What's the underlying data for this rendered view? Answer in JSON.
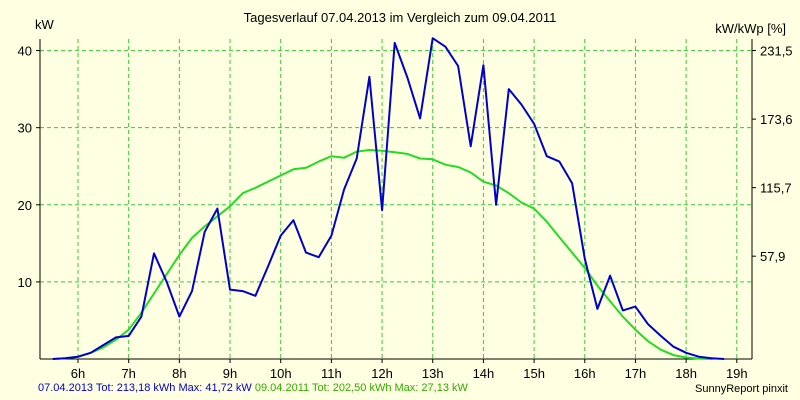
{
  "title": "Tagesverlauf 07.04.2013 im Vergleich zum 09.04.2011",
  "credit": "SunnyReport pinxit",
  "colors": {
    "background": "#ffffe1",
    "grid": "#33cc33",
    "series_2013": "#0000cc",
    "series_2011": "#22dd22"
  },
  "footer": {
    "series_2013": "07.04.2013 Tot: 213,18 kWh Max: 41,72 kW",
    "series_2011": "09.04.2011 Tot: 202,50 kWh Max: 27,13 kW"
  },
  "chart_data": {
    "type": "line",
    "title": "Tagesverlauf 07.04.2013 im Vergleich zum 09.04.2011",
    "ylabel": "kW",
    "ylabel_right": "kW/kWp [%]",
    "xlim": [
      5.25,
      19.3
    ],
    "ylim": [
      0,
      41.5
    ],
    "x_ticks": [
      6,
      7,
      8,
      9,
      10,
      11,
      12,
      13,
      14,
      15,
      16,
      17,
      18,
      19
    ],
    "x_tick_labels": [
      "6h",
      "7h",
      "8h",
      "9h",
      "10h",
      "11h",
      "12h",
      "13h",
      "14h",
      "15h",
      "16h",
      "17h",
      "18h",
      "19h"
    ],
    "y_ticks": [
      10,
      20,
      30,
      40
    ],
    "y_tick_labels": [
      "10",
      "20",
      "30",
      "40"
    ],
    "y2_ticks": [
      5,
      15,
      25,
      35,
      45
    ],
    "y2_tick_labels": [
      "",
      "57,9",
      "115,7",
      "173,6",
      "231,5"
    ],
    "grid": true,
    "series": [
      {
        "name": "07.04.2013",
        "color": "#0000cc",
        "points": [
          [
            5.5,
            0
          ],
          [
            5.75,
            0.1
          ],
          [
            6.0,
            0.3
          ],
          [
            6.25,
            0.8
          ],
          [
            6.5,
            1.8
          ],
          [
            6.75,
            2.8
          ],
          [
            7.0,
            3.0
          ],
          [
            7.25,
            5.5
          ],
          [
            7.5,
            13.7
          ],
          [
            7.75,
            10.0
          ],
          [
            8.0,
            5.5
          ],
          [
            8.25,
            8.8
          ],
          [
            8.5,
            16.5
          ],
          [
            8.75,
            19.5
          ],
          [
            9.0,
            9.0
          ],
          [
            9.25,
            8.8
          ],
          [
            9.5,
            8.2
          ],
          [
            9.75,
            12.0
          ],
          [
            10.0,
            16.0
          ],
          [
            10.25,
            18.0
          ],
          [
            10.5,
            13.8
          ],
          [
            10.75,
            13.2
          ],
          [
            11.0,
            16.0
          ],
          [
            11.25,
            22.0
          ],
          [
            11.5,
            26.0
          ],
          [
            11.75,
            36.6
          ],
          [
            12.0,
            19.3
          ],
          [
            12.25,
            41.0
          ],
          [
            12.5,
            36.5
          ],
          [
            12.75,
            31.2
          ],
          [
            13.0,
            41.6
          ],
          [
            13.25,
            40.5
          ],
          [
            13.5,
            38.0
          ],
          [
            13.75,
            27.6
          ],
          [
            14.0,
            38.1
          ],
          [
            14.25,
            20.0
          ],
          [
            14.5,
            35.0
          ],
          [
            14.75,
            33.0
          ],
          [
            15.0,
            30.5
          ],
          [
            15.25,
            26.3
          ],
          [
            15.5,
            25.6
          ],
          [
            15.75,
            22.8
          ],
          [
            16.0,
            13.0
          ],
          [
            16.25,
            6.5
          ],
          [
            16.5,
            10.8
          ],
          [
            16.75,
            6.3
          ],
          [
            17.0,
            6.8
          ],
          [
            17.25,
            4.5
          ],
          [
            17.5,
            3.0
          ],
          [
            17.75,
            1.6
          ],
          [
            18.0,
            0.8
          ],
          [
            18.25,
            0.3
          ],
          [
            18.5,
            0.1
          ],
          [
            18.75,
            0
          ]
        ]
      },
      {
        "name": "09.04.2011",
        "color": "#22dd22",
        "points": [
          [
            5.5,
            0
          ],
          [
            5.75,
            0.1
          ],
          [
            6.0,
            0.3
          ],
          [
            6.25,
            0.8
          ],
          [
            6.5,
            1.5
          ],
          [
            6.75,
            2.5
          ],
          [
            7.0,
            3.8
          ],
          [
            7.25,
            6.0
          ],
          [
            7.5,
            8.5
          ],
          [
            7.75,
            11.0
          ],
          [
            8.0,
            13.5
          ],
          [
            8.25,
            15.7
          ],
          [
            8.5,
            17.2
          ],
          [
            8.75,
            18.5
          ],
          [
            9.0,
            19.8
          ],
          [
            9.25,
            21.5
          ],
          [
            9.5,
            22.2
          ],
          [
            9.75,
            23.0
          ],
          [
            10.0,
            23.8
          ],
          [
            10.25,
            24.6
          ],
          [
            10.5,
            24.8
          ],
          [
            10.75,
            25.6
          ],
          [
            11.0,
            26.3
          ],
          [
            11.25,
            26.1
          ],
          [
            11.5,
            26.9
          ],
          [
            11.75,
            27.1
          ],
          [
            12.0,
            27.0
          ],
          [
            12.25,
            26.8
          ],
          [
            12.5,
            26.6
          ],
          [
            12.75,
            26.0
          ],
          [
            13.0,
            25.9
          ],
          [
            13.25,
            25.2
          ],
          [
            13.5,
            24.9
          ],
          [
            13.75,
            24.2
          ],
          [
            14.0,
            23.0
          ],
          [
            14.25,
            22.5
          ],
          [
            14.5,
            21.5
          ],
          [
            14.75,
            20.3
          ],
          [
            15.0,
            19.5
          ],
          [
            15.25,
            17.8
          ],
          [
            15.5,
            15.8
          ],
          [
            15.75,
            13.8
          ],
          [
            16.0,
            11.8
          ],
          [
            16.25,
            9.5
          ],
          [
            16.5,
            7.5
          ],
          [
            16.75,
            5.5
          ],
          [
            17.0,
            3.8
          ],
          [
            17.25,
            2.3
          ],
          [
            17.5,
            1.2
          ],
          [
            17.75,
            0.5
          ],
          [
            18.0,
            0.2
          ],
          [
            18.25,
            0.05
          ],
          [
            18.5,
            0
          ]
        ]
      }
    ]
  }
}
